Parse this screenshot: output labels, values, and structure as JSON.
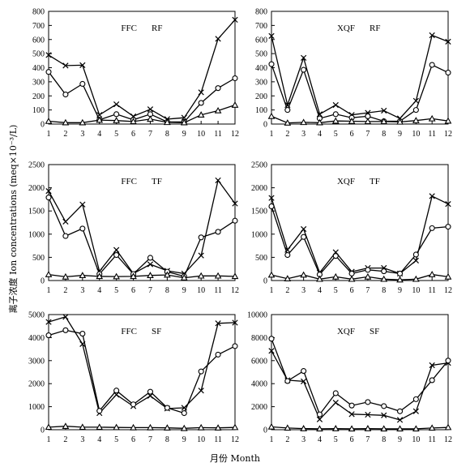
{
  "figure": {
    "ylabel": "离子浓度 Ion concentrations (meq×10⁻³/L)",
    "xlabel": "月份 Month"
  },
  "chart_data": [
    {
      "type": "line",
      "title": "FFC RF",
      "title_parts": [
        "FFC",
        "RF"
      ],
      "x": [
        1,
        2,
        3,
        4,
        5,
        6,
        7,
        8,
        9,
        10,
        11,
        12
      ],
      "ylim": [
        0,
        800
      ],
      "yticks": [
        0,
        100,
        200,
        300,
        400,
        500,
        600,
        700,
        800
      ],
      "grid": false,
      "series": [
        {
          "marker": "x",
          "values": [
            490,
            415,
            418,
            65,
            140,
            55,
            105,
            35,
            45,
            225,
            605,
            740
          ]
        },
        {
          "marker": "o",
          "values": [
            370,
            210,
            285,
            30,
            70,
            30,
            70,
            15,
            15,
            150,
            255,
            325
          ]
        },
        {
          "marker": "^",
          "values": [
            20,
            10,
            10,
            28,
            25,
            18,
            35,
            12,
            10,
            65,
            95,
            135
          ]
        }
      ]
    },
    {
      "type": "line",
      "title": "XQF RF",
      "title_parts": [
        "XQF",
        "RF"
      ],
      "x": [
        1,
        2,
        3,
        4,
        5,
        6,
        7,
        8,
        9,
        10,
        11,
        12
      ],
      "ylim": [
        0,
        800
      ],
      "yticks": [
        0,
        100,
        200,
        300,
        400,
        500,
        600,
        700,
        800
      ],
      "grid": false,
      "series": [
        {
          "marker": "x",
          "values": [
            625,
            135,
            470,
            70,
            135,
            65,
            80,
            95,
            40,
            165,
            630,
            585
          ]
        },
        {
          "marker": "o",
          "values": [
            425,
            100,
            385,
            40,
            70,
            45,
            55,
            20,
            20,
            100,
            420,
            365
          ]
        },
        {
          "marker": "^",
          "values": [
            55,
            8,
            12,
            10,
            22,
            20,
            18,
            18,
            15,
            25,
            38,
            22
          ]
        }
      ]
    },
    {
      "type": "line",
      "title": "FFC TF",
      "title_parts": [
        "FFC",
        "TF"
      ],
      "x": [
        1,
        2,
        3,
        4,
        5,
        6,
        7,
        8,
        9,
        10,
        11,
        12
      ],
      "ylim": [
        0,
        2500
      ],
      "yticks": [
        0,
        500,
        1000,
        1500,
        2000,
        2500
      ],
      "grid": false,
      "series": [
        {
          "marker": "x",
          "values": [
            1930,
            1270,
            1640,
            200,
            660,
            150,
            350,
            210,
            150,
            540,
            2160,
            1660
          ]
        },
        {
          "marker": "o",
          "values": [
            1790,
            960,
            1120,
            140,
            550,
            140,
            490,
            190,
            90,
            930,
            1050,
            1290
          ]
        },
        {
          "marker": "^",
          "values": [
            130,
            80,
            110,
            90,
            85,
            90,
            110,
            120,
            60,
            100,
            100,
            90
          ]
        }
      ]
    },
    {
      "type": "line",
      "title": "XQF TF",
      "title_parts": [
        "XQF",
        "TF"
      ],
      "x": [
        1,
        2,
        3,
        4,
        5,
        6,
        7,
        8,
        9,
        10,
        11,
        12
      ],
      "ylim": [
        0,
        2500
      ],
      "yticks": [
        0,
        500,
        1000,
        1500,
        2000,
        2500
      ],
      "grid": false,
      "series": [
        {
          "marker": "x",
          "values": [
            1780,
            660,
            1110,
            170,
            610,
            190,
            270,
            270,
            150,
            430,
            1820,
            1650
          ]
        },
        {
          "marker": "o",
          "values": [
            1600,
            550,
            940,
            130,
            530,
            150,
            230,
            200,
            150,
            560,
            1130,
            1160
          ]
        },
        {
          "marker": "^",
          "values": [
            120,
            40,
            120,
            30,
            80,
            30,
            80,
            30,
            15,
            30,
            130,
            80
          ]
        }
      ]
    },
    {
      "type": "line",
      "title": "FFC SF",
      "title_parts": [
        "FFC",
        "SF"
      ],
      "x": [
        1,
        2,
        3,
        4,
        5,
        6,
        7,
        8,
        9,
        10,
        11,
        12
      ],
      "ylim": [
        0,
        5000
      ],
      "yticks": [
        0,
        1000,
        2000,
        3000,
        4000,
        5000
      ],
      "grid": false,
      "series": [
        {
          "marker": "x",
          "values": [
            4680,
            4900,
            3720,
            720,
            1520,
            1020,
            1470,
            920,
            950,
            1700,
            4620,
            4650
          ]
        },
        {
          "marker": "o",
          "values": [
            4100,
            4320,
            4170,
            820,
            1700,
            1100,
            1650,
            950,
            720,
            2530,
            3260,
            3630
          ]
        },
        {
          "marker": "^",
          "values": [
            110,
            150,
            110,
            110,
            100,
            90,
            90,
            80,
            60,
            90,
            80,
            100
          ]
        }
      ]
    },
    {
      "type": "line",
      "title": "XQF SF",
      "title_parts": [
        "XQF",
        "SF"
      ],
      "x": [
        1,
        2,
        3,
        4,
        5,
        6,
        7,
        8,
        9,
        10,
        11,
        12
      ],
      "ylim": [
        0,
        10000
      ],
      "yticks": [
        0,
        2000,
        4000,
        6000,
        8000,
        10000
      ],
      "grid": false,
      "series": [
        {
          "marker": "x",
          "values": [
            6850,
            4300,
            4200,
            900,
            2350,
            1350,
            1300,
            1250,
            850,
            1600,
            5600,
            5800
          ]
        },
        {
          "marker": "o",
          "values": [
            7900,
            4230,
            5100,
            1330,
            3170,
            2100,
            2400,
            2050,
            1600,
            2650,
            4300,
            6000
          ]
        },
        {
          "marker": "^",
          "values": [
            250,
            150,
            100,
            80,
            100,
            80,
            100,
            80,
            80,
            80,
            150,
            200
          ]
        }
      ]
    }
  ]
}
